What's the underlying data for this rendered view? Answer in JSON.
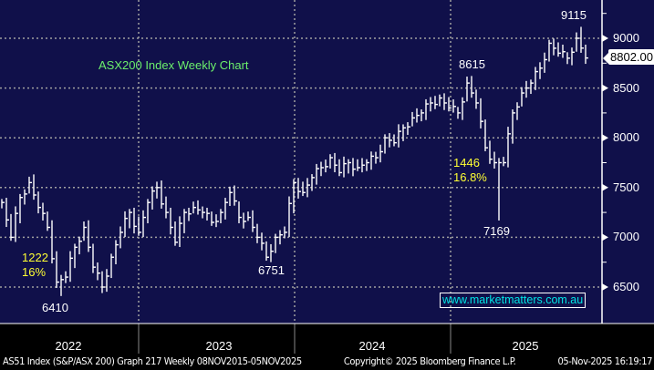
{
  "chart_data": {
    "type": "ohlc",
    "title": "ASX200 Index Weekly Chart",
    "x_unit": "week index (~3 weeks per point, starting mid-Nov 2021)",
    "closes": [
      7350,
      7000,
      7400,
      7550,
      7300,
      7100,
      6550,
      6600,
      6900,
      7100,
      6700,
      6500,
      6800,
      7050,
      7250,
      7050,
      7350,
      7500,
      7250,
      6950,
      7250,
      7300,
      7250,
      7150,
      7250,
      7450,
      7200,
      7200,
      7000,
      6800,
      7000,
      7050,
      7550,
      7450,
      7600,
      7700,
      7800,
      7650,
      7750,
      7700,
      7750,
      7800,
      8000,
      7950,
      8100,
      8200,
      8250,
      8350,
      8400,
      8300,
      8250,
      8550,
      8350,
      7900,
      7750,
      7750,
      8250,
      8450,
      8550,
      8700,
      8950,
      8850,
      8800,
      9000,
      8802
    ],
    "extremes": [
      {
        "index": 3.3,
        "value": 7632
      },
      {
        "index": 6.3,
        "value": 6410
      },
      {
        "index": 10.8,
        "value": 6440
      },
      {
        "index": 29.3,
        "value": 6751
      },
      {
        "index": 51.2,
        "value": 8615
      },
      {
        "index": 54.5,
        "value": 7169
      },
      {
        "index": 63.3,
        "value": 9115
      }
    ],
    "ylim": [
      6250,
      9300
    ],
    "yticks": [
      "9000",
      "8500",
      "8000",
      "7500",
      "7000",
      "6500"
    ],
    "ytick_values": [
      9000,
      8500,
      8000,
      7500,
      7000,
      6500
    ],
    "xticks": [
      "2022",
      "2023",
      "2024",
      "2025"
    ],
    "last_price": "8802.00",
    "grid": true,
    "annotations": {
      "high_2025": "9115",
      "high_2024": "8615",
      "low_2022": "6410",
      "low_2023": "6751",
      "low_2025": "7169",
      "drop_2022_points": "1222",
      "drop_2022_pct": "16%",
      "drop_2025_points": "1446",
      "drop_2025_pct": "16.8%"
    }
  },
  "watermark": "www.marketmatters.com.au",
  "footer": {
    "security": "AS51 Index (S&P/ASX 200) Graph 217 Weekly 08NOV2015-05NOV2025",
    "copyright": "Copyright© 2025 Bloomberg Finance L.P.",
    "timestamp": "05-Nov-2025 16:19:17"
  },
  "colors": {
    "background": "#10104a",
    "bars": "#ffffff",
    "annotation": "#ffff33",
    "title": "#6cf06c",
    "watermark": "#00e5e5"
  }
}
